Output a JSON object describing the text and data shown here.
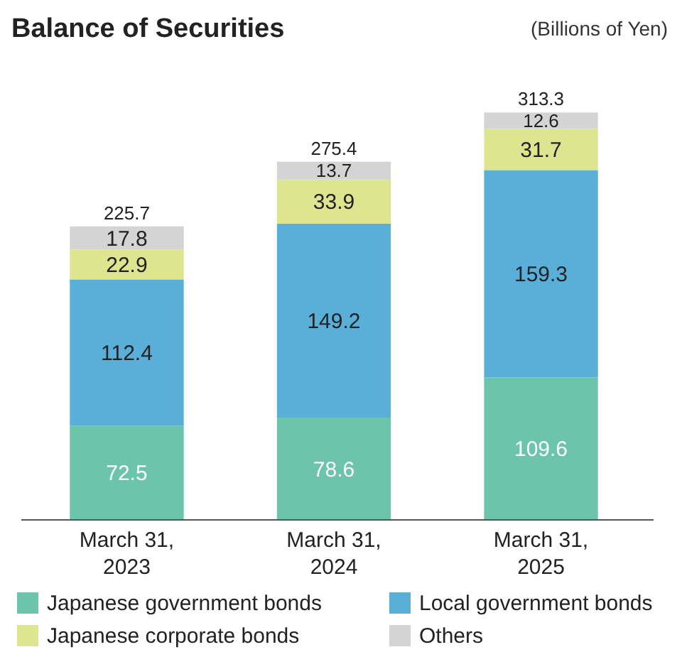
{
  "chart_data": {
    "type": "bar",
    "title": "Balance of Securities",
    "subtitle": "(Billions of Yen)",
    "categories": [
      "March 31, 2023",
      "March 31, 2024",
      "March 31, 2025"
    ],
    "stacked": true,
    "data_labels": true,
    "legend": "bottom",
    "series": [
      {
        "name": "Japanese government bonds",
        "color": "#6cc5aa",
        "values": [
          72.5,
          78.6,
          109.6
        ]
      },
      {
        "name": "Local government bonds",
        "color": "#5aafd8",
        "values": [
          112.4,
          149.2,
          159.3
        ]
      },
      {
        "name": "Japanese corporate bonds",
        "color": "#dde68e",
        "values": [
          22.9,
          33.9,
          31.7
        ]
      },
      {
        "name": "Others",
        "color": "#d4d4d4",
        "values": [
          17.8,
          13.7,
          12.6
        ]
      }
    ],
    "totals": [
      "225.7",
      "275.4",
      "313.3"
    ]
  }
}
